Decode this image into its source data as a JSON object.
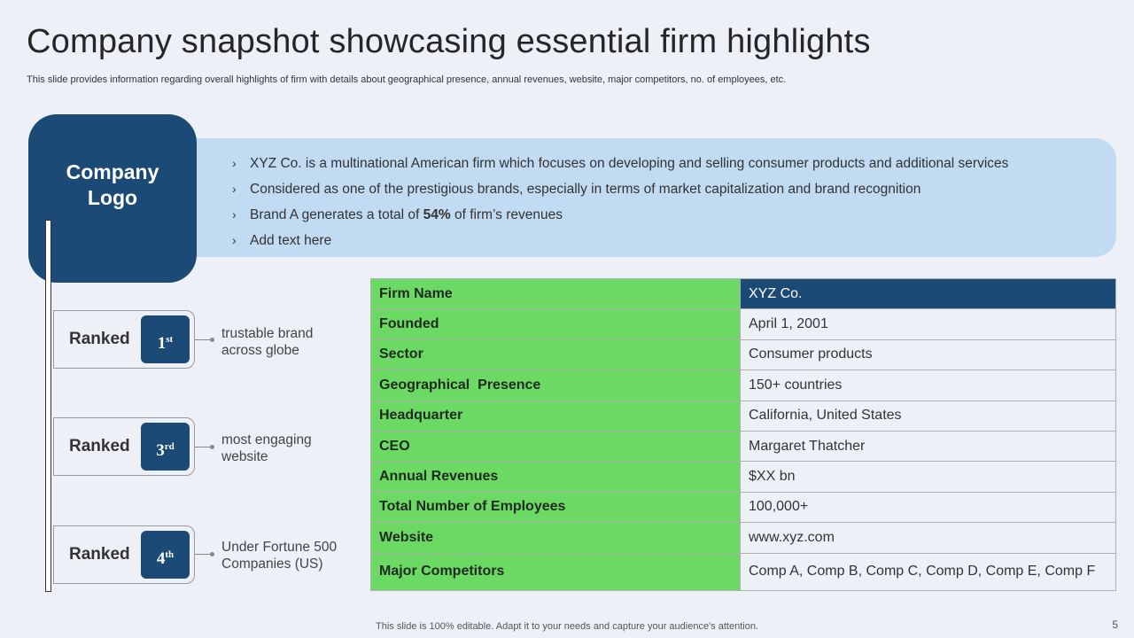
{
  "title": "Company snapshot showcasing essential firm highlights",
  "subtitle": "This slide provides information regarding overall highlights of firm with details about geographical presence, annual revenues, website, major competitors, no. of employees, etc.",
  "logo": {
    "text": "Company\nLogo"
  },
  "bullets": [
    {
      "text": "XYZ Co. is a multinational American firm which focuses on developing and selling consumer products and additional services"
    },
    {
      "text": "Considered as one of the prestigious brands, especially in terms of market capitalization and brand recognition"
    },
    {
      "text_before": "Brand A generates a total of ",
      "highlight": "54%",
      "text_after": " of firm’s revenues"
    },
    {
      "text": "Add text here"
    }
  ],
  "ranks": [
    {
      "label": "Ranked",
      "num": "1",
      "suffix": "st",
      "desc": "trustable brand\nacross globe"
    },
    {
      "label": "Ranked",
      "num": "3",
      "suffix": "rd",
      "desc": "most engaging\nwebsite"
    },
    {
      "label": "Ranked",
      "num": "4",
      "suffix": "th",
      "desc": "Under Fortune 500\nCompanies (US)"
    }
  ],
  "table": [
    {
      "key": "Firm Name",
      "value": "XYZ Co."
    },
    {
      "key": "Founded",
      "value": "April 1, 2001"
    },
    {
      "key": "Sector",
      "value": "Consumer products"
    },
    {
      "key": "Geographical  Presence",
      "value": "150+ countries"
    },
    {
      "key": "Headquarter",
      "value": "California, United States"
    },
    {
      "key": "CEO",
      "value": "Margaret Thatcher"
    },
    {
      "key": "Annual Revenues",
      "value": "$XX bn"
    },
    {
      "key": "Total Number of Employees",
      "value": "100,000+"
    },
    {
      "key": "Website",
      "value": "www.xyz.com"
    },
    {
      "key": "Major Competitors",
      "value": "Comp A, Comp B, Comp C, Comp D, Comp E, Comp F"
    }
  ],
  "footer": "This slide is 100% editable. Adapt it to your needs and capture your audience's attention.",
  "page_number": "5",
  "colors": {
    "navy": "#1a4a75",
    "green": "#6cd965",
    "light_blue": "#c0dbf2",
    "background": "#eef0f7"
  }
}
